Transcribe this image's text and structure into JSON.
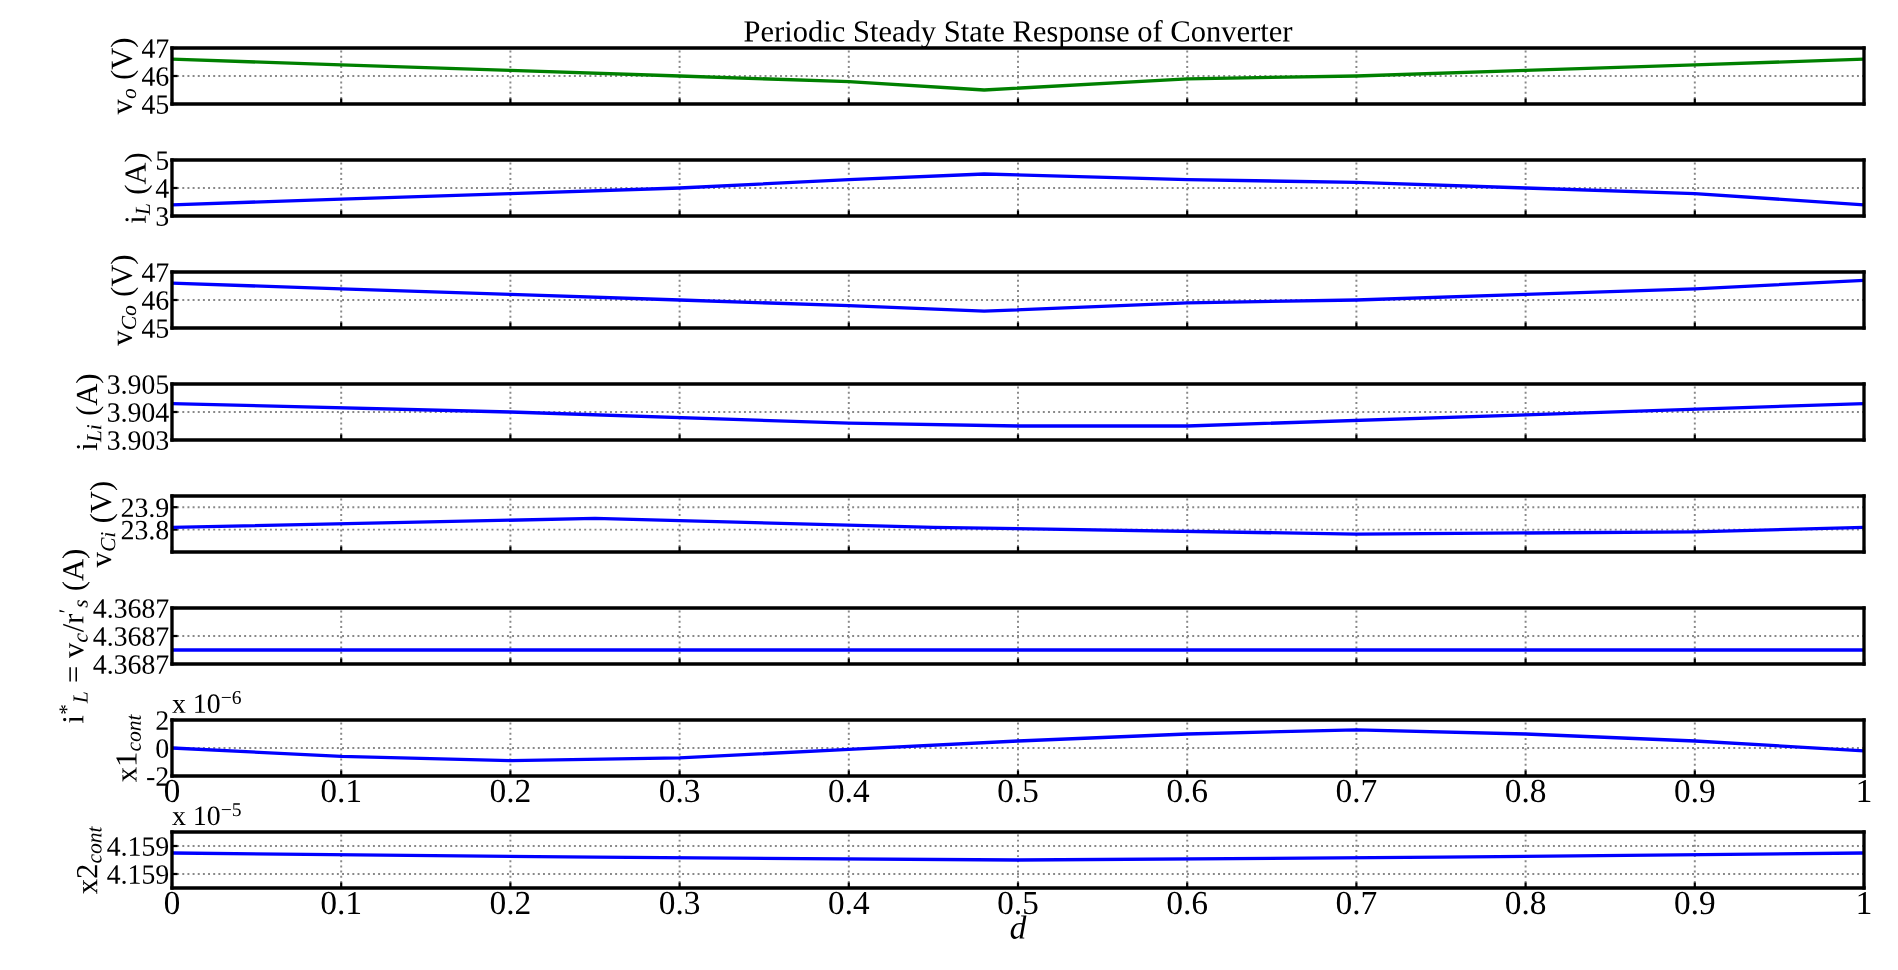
{
  "chart_data": [
    {
      "type": "line",
      "title": "Periodic Steady State Response of Converter",
      "ylabel": "v$_{o}$ (V)",
      "x": [
        0,
        0.1,
        0.2,
        0.3,
        0.4,
        0.48,
        0.6,
        0.7,
        0.8,
        0.9,
        1
      ],
      "series": [
        {
          "color": "#008000",
          "values": [
            46.6,
            46.4,
            46.2,
            46.0,
            45.8,
            45.5,
            45.9,
            46.0,
            46.2,
            46.4,
            46.6
          ]
        }
      ],
      "xlim": [
        0,
        1
      ],
      "ylim": [
        45,
        47
      ],
      "xticks": [
        0,
        0.1,
        0.2,
        0.3,
        0.4,
        0.5,
        0.6,
        0.7,
        0.8,
        0.9,
        1
      ],
      "yticks": [
        45,
        46,
        47
      ],
      "grid": true,
      "tick_labels": "y"
    },
    {
      "type": "line",
      "ylabel": "i$_{L}$ (A)",
      "x": [
        0,
        0.1,
        0.2,
        0.3,
        0.4,
        0.48,
        0.6,
        0.7,
        0.8,
        0.9,
        1
      ],
      "series": [
        {
          "color": "#0000ff",
          "values": [
            3.4,
            3.6,
            3.8,
            4.0,
            4.3,
            4.5,
            4.3,
            4.2,
            4.0,
            3.8,
            3.4
          ]
        }
      ],
      "xlim": [
        0,
        1
      ],
      "ylim": [
        3,
        5
      ],
      "xticks": [
        0,
        0.1,
        0.2,
        0.3,
        0.4,
        0.5,
        0.6,
        0.7,
        0.8,
        0.9,
        1
      ],
      "yticks": [
        3,
        4,
        5
      ],
      "grid": true,
      "tick_labels": "y"
    },
    {
      "type": "line",
      "ylabel": "v$_{Co}$ (V)",
      "x": [
        0,
        0.1,
        0.2,
        0.3,
        0.4,
        0.48,
        0.6,
        0.7,
        0.8,
        0.9,
        1
      ],
      "series": [
        {
          "color": "#0000ff",
          "values": [
            46.6,
            46.4,
            46.2,
            46.0,
            45.8,
            45.6,
            45.9,
            46.0,
            46.2,
            46.4,
            46.7
          ]
        }
      ],
      "xlim": [
        0,
        1
      ],
      "ylim": [
        45,
        47
      ],
      "xticks": [
        0,
        0.1,
        0.2,
        0.3,
        0.4,
        0.5,
        0.6,
        0.7,
        0.8,
        0.9,
        1
      ],
      "yticks": [
        45,
        46,
        47
      ],
      "grid": true,
      "tick_labels": "y"
    },
    {
      "type": "line",
      "ylabel": "i$_{Li}$ (A)",
      "x": [
        0,
        0.2,
        0.4,
        0.5,
        0.6,
        0.8,
        1
      ],
      "series": [
        {
          "color": "#0000ff",
          "values": [
            3.9043,
            3.904,
            3.9036,
            3.9035,
            3.9035,
            3.9039,
            3.9043
          ]
        }
      ],
      "xlim": [
        0,
        1
      ],
      "ylim": [
        3.903,
        3.905
      ],
      "xticks": [
        0,
        0.1,
        0.2,
        0.3,
        0.4,
        0.5,
        0.6,
        0.7,
        0.8,
        0.9,
        1
      ],
      "yticks": [
        3.903,
        3.904,
        3.905
      ],
      "grid": true,
      "tick_labels": "y"
    },
    {
      "type": "line",
      "ylabel": "v$_{Ci}$ (V)",
      "x": [
        0,
        0.25,
        0.45,
        0.7,
        0.9,
        1
      ],
      "series": [
        {
          "color": "#0000ff",
          "values": [
            23.81,
            23.85,
            23.81,
            23.78,
            23.79,
            23.81
          ]
        }
      ],
      "xlim": [
        0,
        1
      ],
      "ylim": [
        23.7,
        23.95
      ],
      "xticks": [
        0,
        0.1,
        0.2,
        0.3,
        0.4,
        0.5,
        0.6,
        0.7,
        0.8,
        0.9,
        1
      ],
      "yticks": [
        23.8,
        23.9
      ],
      "grid": true,
      "tick_labels": "y"
    },
    {
      "type": "line",
      "ylabel": "i$^{*}$$_{L}$ = v$_{c}$/r$^{′}$$_{s}$ (A)",
      "x": [
        0,
        0.3,
        0.5,
        0.7,
        1
      ],
      "series": [
        {
          "color": "#0000ff",
          "values": [
            4.36869,
            4.36869,
            4.36869,
            4.36869,
            4.36869
          ]
        }
      ],
      "xlim": [
        0,
        1
      ],
      "ylim": [
        4.36868,
        4.36872
      ],
      "xticks": [
        0,
        0.1,
        0.2,
        0.3,
        0.4,
        0.5,
        0.6,
        0.7,
        0.8,
        0.9,
        1
      ],
      "yticks": [
        {
          "value": 4.36868,
          "label": "4.3687"
        },
        {
          "value": 4.3687,
          "label": "4.3687"
        },
        {
          "value": 4.36872,
          "label": "4.3687"
        }
      ],
      "grid": true,
      "tick_labels": "y"
    },
    {
      "type": "line",
      "ylabel": "x1$_{cont}$",
      "annotations": [
        "x 10$^{−6}$"
      ],
      "x": [
        0,
        0.1,
        0.2,
        0.3,
        0.4,
        0.5,
        0.6,
        0.7,
        0.8,
        0.9,
        1
      ],
      "series": [
        {
          "color": "#0000ff",
          "values": [
            0,
            -0.6,
            -0.9,
            -0.7,
            -0.1,
            0.5,
            1.0,
            1.3,
            1.0,
            0.5,
            -0.2
          ]
        }
      ],
      "xlim": [
        0,
        1
      ],
      "ylim": [
        -2,
        2
      ],
      "xticks": [
        0,
        0.1,
        0.2,
        0.3,
        0.4,
        0.5,
        0.6,
        0.7,
        0.8,
        0.9,
        1
      ],
      "yticks": [
        -2,
        0,
        2
      ],
      "grid": true
    },
    {
      "type": "line",
      "ylabel": "x2$_{cont}$",
      "xlabel": "d",
      "annotations": [
        "x 10$^{−5}$"
      ],
      "x": [
        0,
        0.25,
        0.5,
        0.75,
        1
      ],
      "series": [
        {
          "color": "#0000ff",
          "values": [
            4.15905,
            4.15902,
            4.159,
            4.15902,
            4.15905
          ]
        }
      ],
      "xlim": [
        0,
        1
      ],
      "ylim": [
        4.1588,
        4.1592
      ],
      "xticks": [
        0,
        0.1,
        0.2,
        0.3,
        0.4,
        0.5,
        0.6,
        0.7,
        0.8,
        0.9,
        1
      ],
      "yticks": [
        {
          "value": 4.1589,
          "label": "4.159"
        },
        {
          "value": 4.1591,
          "label": "4.159"
        }
      ],
      "grid": true
    }
  ]
}
